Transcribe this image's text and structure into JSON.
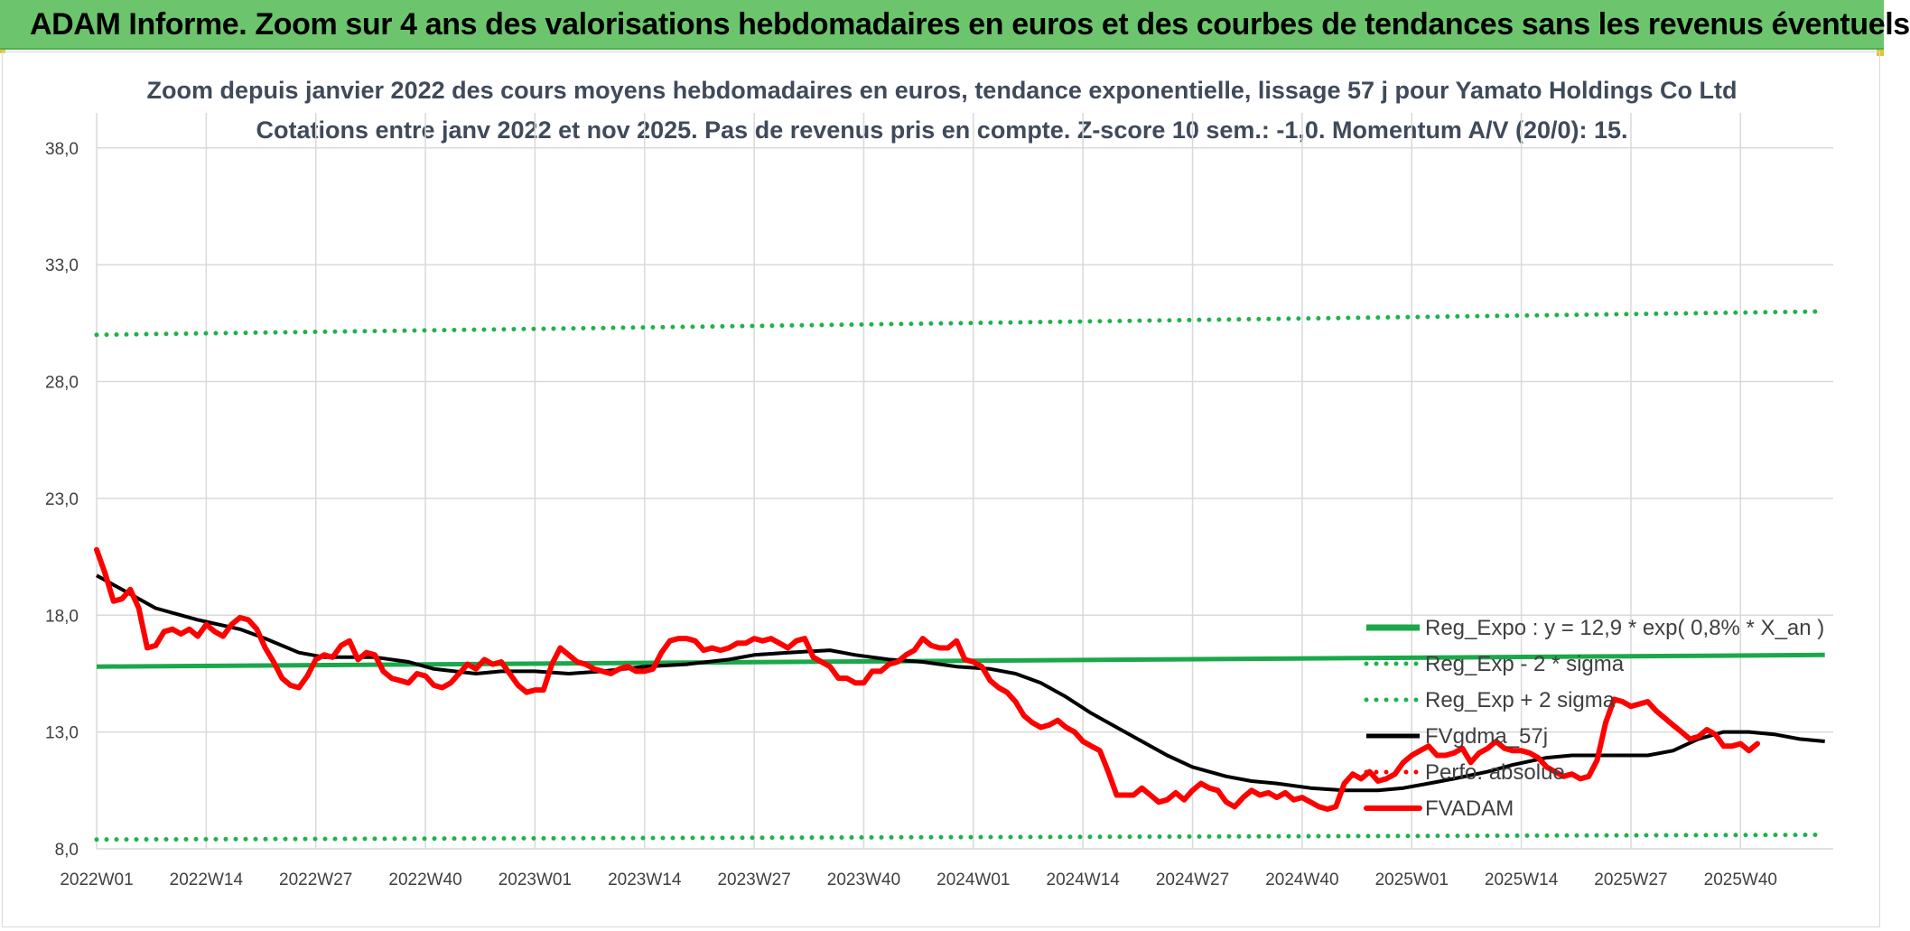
{
  "banner": {
    "title": "ADAM Informe. Zoom sur 4 ans des valorisations hebdomadaires en euros et des courbes de tendances sans les revenus éventuels"
  },
  "colors": {
    "banner_bg": "#6cc56c",
    "trend_green": "#1aa84a",
    "band_green": "#1fb24a",
    "black": "#000000",
    "red": "#ff0000",
    "grid": "#d9d9d9"
  },
  "chart_data": {
    "type": "line",
    "title": "Zoom depuis janvier 2022 des cours moyens hebdomadaires en euros, tendance exponentielle, lissage 57 j pour Yamato Holdings Co Ltd",
    "subtitle": "Cotations entre janv 2022 et nov 2025. Pas de revenus pris en compte. Z-score 10 sem.: -1,0. Momentum A/V (20/0): 15.",
    "xlabel": "",
    "ylabel": "",
    "ylim": [
      8,
      39.5
    ],
    "yticks": [
      8,
      13,
      18,
      23,
      28,
      33,
      38
    ],
    "ytick_labels": [
      "8,0",
      "13,0",
      "18,0",
      "23,0",
      "28,0",
      "33,0",
      "38,0"
    ],
    "xtick_labels": [
      "2022W01",
      "2022W14",
      "2022W27",
      "2022W40",
      "2023W01",
      "2023W14",
      "2023W27",
      "2023W40",
      "2024W01",
      "2024W14",
      "2024W27",
      "2024W40",
      "2025W01",
      "2025W14",
      "2025W27",
      "2025W40"
    ],
    "x_weeks_total": 206,
    "x_tick_step_weeks": 13,
    "grid": true,
    "legend_position": "bottom-right, inside plot",
    "series": [
      {
        "name": "Reg_Expo : y = 12,9 * exp( 0,8% *  X_an )",
        "style": "solid",
        "color": "#1aa84a",
        "points": [
          [
            0,
            15.8
          ],
          [
            205,
            16.3
          ]
        ]
      },
      {
        "name": "Reg_Exp - 2 * sigma",
        "style": "dotted",
        "color": "#1fb24a",
        "points": [
          [
            0,
            8.4
          ],
          [
            205,
            8.6
          ]
        ]
      },
      {
        "name": "Reg_Exp + 2 sigma",
        "style": "dotted",
        "color": "#1fb24a",
        "points": [
          [
            0,
            30.0
          ],
          [
            205,
            31.0
          ]
        ]
      },
      {
        "name": "FVgdma_57j",
        "style": "solid",
        "color": "#000000",
        "points": [
          [
            0,
            19.7
          ],
          [
            3,
            19.1
          ],
          [
            7,
            18.3
          ],
          [
            12,
            17.8
          ],
          [
            17,
            17.4
          ],
          [
            20,
            17.0
          ],
          [
            24,
            16.4
          ],
          [
            27,
            16.2
          ],
          [
            33,
            16.2
          ],
          [
            37,
            16.0
          ],
          [
            40,
            15.7
          ],
          [
            45,
            15.5
          ],
          [
            48,
            15.6
          ],
          [
            52,
            15.6
          ],
          [
            56,
            15.5
          ],
          [
            60,
            15.6
          ],
          [
            65,
            15.8
          ],
          [
            70,
            15.9
          ],
          [
            75,
            16.1
          ],
          [
            78,
            16.3
          ],
          [
            82,
            16.4
          ],
          [
            87,
            16.5
          ],
          [
            90,
            16.3
          ],
          [
            94,
            16.1
          ],
          [
            98,
            16.0
          ],
          [
            102,
            15.8
          ],
          [
            106,
            15.7
          ],
          [
            109,
            15.5
          ],
          [
            112,
            15.1
          ],
          [
            115,
            14.5
          ],
          [
            118,
            13.8
          ],
          [
            121,
            13.2
          ],
          [
            124,
            12.6
          ],
          [
            127,
            12.0
          ],
          [
            130,
            11.5
          ],
          [
            134,
            11.1
          ],
          [
            137,
            10.9
          ],
          [
            140,
            10.8
          ],
          [
            144,
            10.6
          ],
          [
            148,
            10.5
          ],
          [
            152,
            10.5
          ],
          [
            155,
            10.6
          ],
          [
            158,
            10.8
          ],
          [
            161,
            11.0
          ],
          [
            165,
            11.3
          ],
          [
            168,
            11.6
          ],
          [
            172,
            11.9
          ],
          [
            175,
            12.0
          ],
          [
            180,
            12.0
          ],
          [
            184,
            12.0
          ],
          [
            187,
            12.2
          ],
          [
            190,
            12.7
          ],
          [
            193,
            13.0
          ],
          [
            196,
            13.0
          ],
          [
            199,
            12.9
          ],
          [
            202,
            12.7
          ],
          [
            205,
            12.6
          ]
        ]
      },
      {
        "name": "Perfo. absolue",
        "style": "dotted",
        "color": "#ff0000",
        "points": []
      },
      {
        "name": "FVADAM",
        "style": "solid",
        "color": "#ff0000",
        "points": [
          [
            0,
            20.8
          ],
          [
            1,
            19.8
          ],
          [
            2,
            18.6
          ],
          [
            3,
            18.7
          ],
          [
            4,
            19.1
          ],
          [
            5,
            18.3
          ],
          [
            6,
            16.6
          ],
          [
            7,
            16.7
          ],
          [
            8,
            17.3
          ],
          [
            9,
            17.4
          ],
          [
            10,
            17.2
          ],
          [
            11,
            17.4
          ],
          [
            12,
            17.1
          ],
          [
            13,
            17.6
          ],
          [
            14,
            17.3
          ],
          [
            15,
            17.1
          ],
          [
            16,
            17.6
          ],
          [
            17,
            17.9
          ],
          [
            18,
            17.8
          ],
          [
            19,
            17.4
          ],
          [
            20,
            16.6
          ],
          [
            21,
            16.0
          ],
          [
            22,
            15.3
          ],
          [
            23,
            15.0
          ],
          [
            24,
            14.9
          ],
          [
            25,
            15.4
          ],
          [
            26,
            16.1
          ],
          [
            27,
            16.3
          ],
          [
            28,
            16.2
          ],
          [
            29,
            16.7
          ],
          [
            30,
            16.9
          ],
          [
            31,
            16.1
          ],
          [
            32,
            16.4
          ],
          [
            33,
            16.3
          ],
          [
            34,
            15.6
          ],
          [
            35,
            15.3
          ],
          [
            36,
            15.2
          ],
          [
            37,
            15.1
          ],
          [
            38,
            15.5
          ],
          [
            39,
            15.4
          ],
          [
            40,
            15.0
          ],
          [
            41,
            14.9
          ],
          [
            42,
            15.1
          ],
          [
            43,
            15.5
          ],
          [
            44,
            15.9
          ],
          [
            45,
            15.7
          ],
          [
            46,
            16.1
          ],
          [
            47,
            15.9
          ],
          [
            48,
            16.0
          ],
          [
            49,
            15.5
          ],
          [
            50,
            15.0
          ],
          [
            51,
            14.7
          ],
          [
            52,
            14.8
          ],
          [
            53,
            14.8
          ],
          [
            54,
            15.9
          ],
          [
            55,
            16.6
          ],
          [
            56,
            16.3
          ],
          [
            57,
            16.0
          ],
          [
            58,
            15.9
          ],
          [
            59,
            15.7
          ],
          [
            60,
            15.6
          ],
          [
            61,
            15.5
          ],
          [
            62,
            15.7
          ],
          [
            63,
            15.8
          ],
          [
            64,
            15.6
          ],
          [
            65,
            15.6
          ],
          [
            66,
            15.7
          ],
          [
            67,
            16.4
          ],
          [
            68,
            16.9
          ],
          [
            69,
            17.0
          ],
          [
            70,
            17.0
          ],
          [
            71,
            16.9
          ],
          [
            72,
            16.5
          ],
          [
            73,
            16.6
          ],
          [
            74,
            16.5
          ],
          [
            75,
            16.6
          ],
          [
            76,
            16.8
          ],
          [
            77,
            16.8
          ],
          [
            78,
            17.0
          ],
          [
            79,
            16.9
          ],
          [
            80,
            17.0
          ],
          [
            81,
            16.8
          ],
          [
            82,
            16.6
          ],
          [
            83,
            16.9
          ],
          [
            84,
            17.0
          ],
          [
            85,
            16.2
          ],
          [
            86,
            16.0
          ],
          [
            87,
            15.8
          ],
          [
            88,
            15.3
          ],
          [
            89,
            15.3
          ],
          [
            90,
            15.1
          ],
          [
            91,
            15.1
          ],
          [
            92,
            15.6
          ],
          [
            93,
            15.6
          ],
          [
            94,
            15.9
          ],
          [
            95,
            16.0
          ],
          [
            96,
            16.3
          ],
          [
            97,
            16.5
          ],
          [
            98,
            17.0
          ],
          [
            99,
            16.7
          ],
          [
            100,
            16.6
          ],
          [
            101,
            16.6
          ],
          [
            102,
            16.9
          ],
          [
            103,
            16.1
          ],
          [
            104,
            16.0
          ],
          [
            105,
            15.8
          ],
          [
            106,
            15.2
          ],
          [
            107,
            14.9
          ],
          [
            108,
            14.7
          ],
          [
            109,
            14.3
          ],
          [
            110,
            13.7
          ],
          [
            111,
            13.4
          ],
          [
            112,
            13.2
          ],
          [
            113,
            13.3
          ],
          [
            114,
            13.5
          ],
          [
            115,
            13.2
          ],
          [
            116,
            13.0
          ],
          [
            117,
            12.6
          ],
          [
            118,
            12.4
          ],
          [
            119,
            12.2
          ],
          [
            120,
            11.3
          ],
          [
            121,
            10.3
          ],
          [
            122,
            10.3
          ],
          [
            123,
            10.3
          ],
          [
            124,
            10.6
          ],
          [
            125,
            10.3
          ],
          [
            126,
            10.0
          ],
          [
            127,
            10.1
          ],
          [
            128,
            10.4
          ],
          [
            129,
            10.1
          ],
          [
            130,
            10.5
          ],
          [
            131,
            10.8
          ],
          [
            132,
            10.6
          ],
          [
            133,
            10.5
          ],
          [
            134,
            10.0
          ],
          [
            135,
            9.8
          ],
          [
            136,
            10.2
          ],
          [
            137,
            10.5
          ],
          [
            138,
            10.3
          ],
          [
            139,
            10.4
          ],
          [
            140,
            10.2
          ],
          [
            141,
            10.4
          ],
          [
            142,
            10.1
          ],
          [
            143,
            10.2
          ],
          [
            144,
            10.0
          ],
          [
            145,
            9.8
          ],
          [
            146,
            9.7
          ],
          [
            147,
            9.8
          ],
          [
            148,
            10.8
          ],
          [
            149,
            11.2
          ],
          [
            150,
            11.0
          ],
          [
            151,
            11.3
          ],
          [
            152,
            10.9
          ],
          [
            153,
            11.0
          ],
          [
            154,
            11.2
          ],
          [
            155,
            11.7
          ],
          [
            156,
            12.0
          ],
          [
            157,
            12.2
          ],
          [
            158,
            12.4
          ],
          [
            159,
            12.0
          ],
          [
            160,
            12.0
          ],
          [
            161,
            12.1
          ],
          [
            162,
            12.3
          ],
          [
            163,
            11.7
          ],
          [
            164,
            12.1
          ],
          [
            165,
            12.3
          ],
          [
            166,
            12.6
          ],
          [
            167,
            12.3
          ],
          [
            168,
            12.2
          ],
          [
            169,
            12.2
          ],
          [
            170,
            12.1
          ],
          [
            171,
            11.9
          ],
          [
            172,
            11.5
          ],
          [
            173,
            11.3
          ],
          [
            174,
            11.1
          ],
          [
            175,
            11.2
          ],
          [
            176,
            11.0
          ],
          [
            177,
            11.1
          ],
          [
            178,
            11.8
          ],
          [
            179,
            13.4
          ],
          [
            180,
            14.4
          ],
          [
            181,
            14.3
          ],
          [
            182,
            14.1
          ],
          [
            183,
            14.2
          ],
          [
            184,
            14.3
          ],
          [
            185,
            13.9
          ],
          [
            186,
            13.6
          ],
          [
            187,
            13.3
          ],
          [
            188,
            13.0
          ],
          [
            189,
            12.7
          ],
          [
            190,
            12.8
          ],
          [
            191,
            13.1
          ],
          [
            192,
            12.9
          ],
          [
            193,
            12.4
          ],
          [
            194,
            12.4
          ],
          [
            195,
            12.5
          ],
          [
            196,
            12.2
          ],
          [
            197,
            12.5
          ]
        ]
      }
    ]
  }
}
